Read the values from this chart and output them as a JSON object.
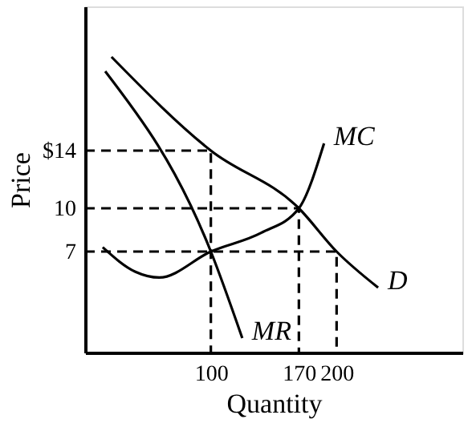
{
  "chart_data": {
    "type": "line",
    "xlabel": "Quantity",
    "ylabel": "Price",
    "xlim": [
      0,
      300
    ],
    "ylim": [
      0,
      24
    ],
    "xticks": [
      100,
      170,
      200
    ],
    "yticks": [
      7,
      10,
      {
        "value": 14,
        "label": "$14"
      }
    ],
    "grid": false,
    "legend": false,
    "marker": "none",
    "line_style": "solid",
    "series": [
      {
        "name": "D",
        "color": "#000000",
        "x": [
          21,
          100,
          170,
          200,
          233
        ],
        "values": [
          20.5,
          14,
          10,
          7,
          4.5
        ]
      },
      {
        "name": "MR",
        "color": "#000000",
        "x": [
          16,
          100,
          125
        ],
        "values": [
          19.5,
          7,
          1
        ]
      },
      {
        "name": "MC",
        "color": "#000000",
        "x": [
          14,
          40,
          59,
          100,
          140,
          170,
          190
        ],
        "values": [
          7.3,
          5.6,
          5.2,
          7,
          8.3,
          10,
          14.5
        ]
      },
      {
        "color": "#000000",
        "line_style": "dashed",
        "x": [
          0,
          100,
          100
        ],
        "values": [
          14,
          14,
          0
        ]
      },
      {
        "color": "#000000",
        "line_style": "dashed",
        "x": [
          0,
          170,
          170
        ],
        "values": [
          10,
          10,
          0
        ]
      },
      {
        "color": "#000000",
        "line_style": "dashed",
        "x": [
          0,
          200,
          200
        ],
        "values": [
          7,
          7,
          0
        ]
      }
    ]
  }
}
